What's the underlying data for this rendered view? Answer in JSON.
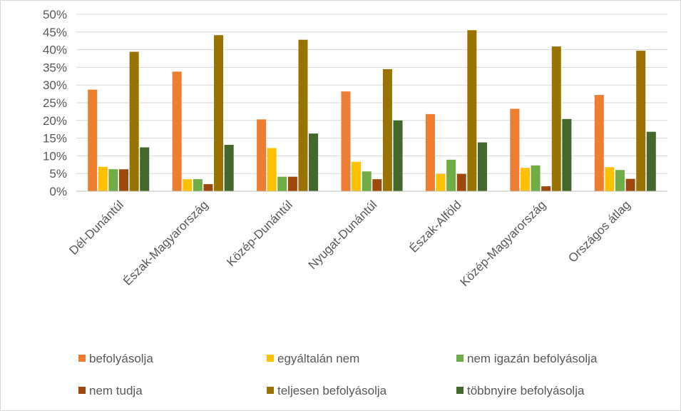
{
  "chart_data": {
    "type": "bar",
    "categories": [
      "Dél-Dunántúl",
      "Észak-Magyarország",
      "Közép-Dunántúl",
      "Nyugat-Dunántúl",
      "Észak-Alföld",
      "Közép-Magyarország",
      "Országos átlag"
    ],
    "series": [
      {
        "name": "befolyásolja",
        "color": "#ED7D31",
        "values": [
          28.7,
          33.8,
          20.3,
          28.2,
          21.8,
          23.3,
          27.2
        ]
      },
      {
        "name": "egyáltalán nem",
        "color": "#FFC000",
        "values": [
          6.9,
          3.4,
          12.2,
          8.3,
          4.9,
          6.6,
          6.8
        ]
      },
      {
        "name": "nem igazán befolyásolja",
        "color": "#70AD47",
        "values": [
          6.2,
          3.4,
          4.1,
          5.6,
          8.9,
          7.3,
          6.0
        ]
      },
      {
        "name": "nem tudja",
        "color": "#9E480E",
        "values": [
          6.2,
          2.0,
          4.1,
          3.4,
          4.9,
          1.4,
          3.5
        ]
      },
      {
        "name": "teljesen befolyásolja",
        "color": "#997300",
        "values": [
          39.4,
          44.1,
          42.8,
          34.5,
          45.5,
          40.9,
          39.7
        ]
      },
      {
        "name": "többnyire befolyásolja",
        "color": "#43682B",
        "values": [
          12.4,
          13.1,
          16.3,
          20.0,
          13.8,
          20.4,
          16.8
        ]
      }
    ],
    "ylim": [
      0,
      50
    ],
    "y_tick_step": 5,
    "y_tick_format": "percent",
    "grid": true,
    "legend_position": "bottom"
  }
}
